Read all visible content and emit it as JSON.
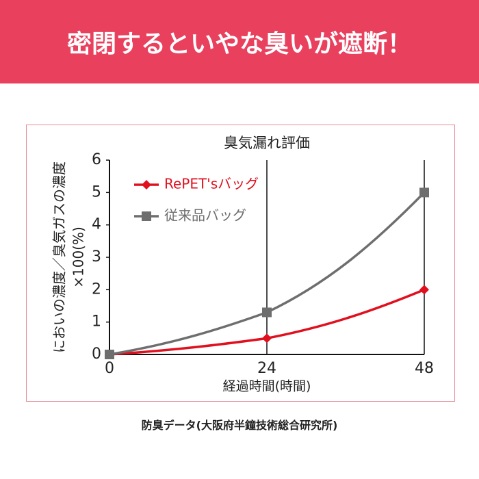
{
  "banner": {
    "title": "密閉するといやな臭いが遮断！"
  },
  "chart_data": {
    "type": "line",
    "title": "臭気漏れ評価",
    "y_label": [
      "においの濃度／臭気ガスの濃度",
      "×100(%)"
    ],
    "x_label": "経過時間(時間)",
    "x": [
      0,
      24,
      48
    ],
    "xlim": [
      0,
      48
    ],
    "xticks": [
      0,
      24,
      48
    ],
    "ylim": [
      0,
      6
    ],
    "yticks": [
      0,
      1,
      2,
      3,
      4,
      5,
      6
    ],
    "legend": "top-left",
    "series": [
      {
        "name": "RePET'sバッグ",
        "color": "#e0101e",
        "marker": "diamond",
        "values": [
          0,
          0.5,
          2
        ]
      },
      {
        "name": "従来品バッグ",
        "color": "#6e6e6e",
        "marker": "square",
        "values": [
          0,
          1.3,
          5
        ]
      }
    ]
  },
  "footer": {
    "caption": "防臭データ(大阪府半鐘技術総合研究所)"
  }
}
